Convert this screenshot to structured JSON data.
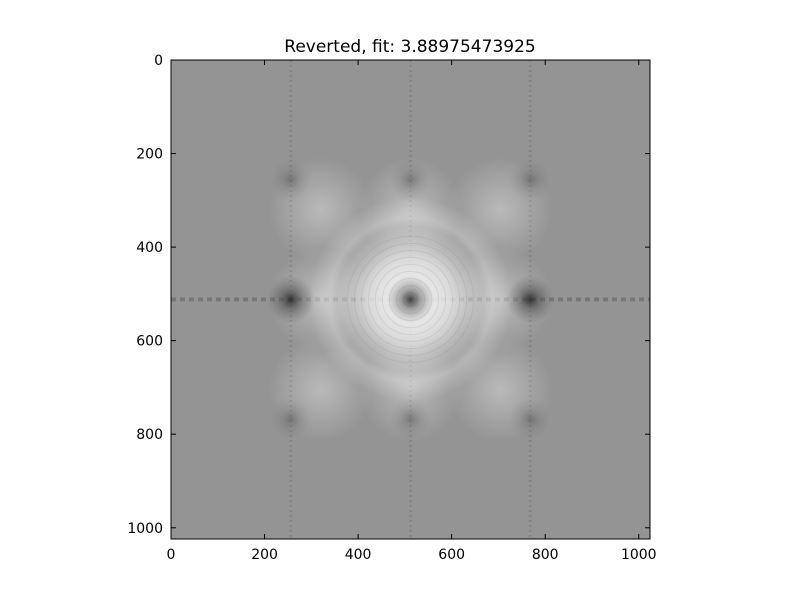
{
  "chart_data": {
    "type": "heatmap",
    "title": "Reverted, fit: 3.88975473925",
    "xlabel": "",
    "ylabel": "",
    "image_size": [
      1024,
      1024
    ],
    "colormap": "gray",
    "background_gray_level": 0.58,
    "xlim": [
      0,
      1024
    ],
    "ylim": [
      1024,
      0
    ],
    "x_ticks": [
      0,
      200,
      400,
      600,
      800,
      1000
    ],
    "y_ticks": [
      0,
      200,
      400,
      600,
      800,
      1000
    ],
    "x_tick_labels": [
      "0",
      "200",
      "400",
      "600",
      "800",
      "1000"
    ],
    "y_tick_labels": [
      "0",
      "200",
      "400",
      "600",
      "800",
      "1000"
    ],
    "central_peak": {
      "x": 512,
      "y": 512
    },
    "lattice_spacing": 256,
    "bright_ring_radius": 150,
    "grid": false
  }
}
